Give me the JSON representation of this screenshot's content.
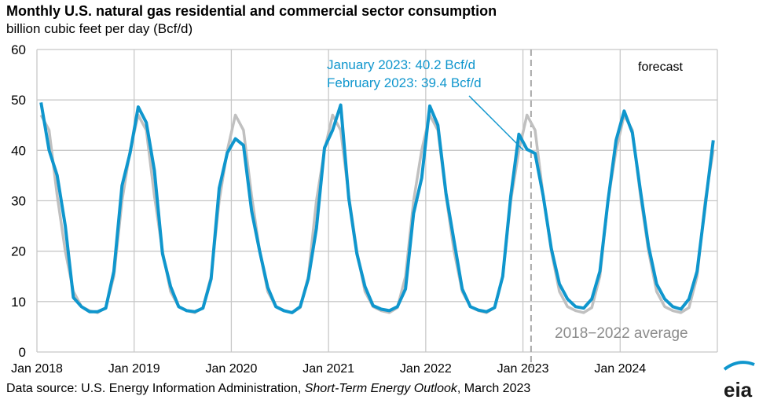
{
  "chart_data": {
    "type": "line",
    "title": "Monthly U.S. natural gas residential and commercial sector consumption",
    "subtitle": "billion cubic feet per day (Bcf/d)",
    "ylabel": "",
    "xlabel": "",
    "ylim": [
      0,
      60
    ],
    "yticks": [
      "0",
      "10",
      "20",
      "30",
      "40",
      "50",
      "60"
    ],
    "xstart": "Jan 2018",
    "xend": "Dec 2024",
    "xticks": [
      "Jan 2018",
      "Jan 2019",
      "Jan 2020",
      "Jan 2021",
      "Jan 2022",
      "Jan 2023",
      "Jan 2024"
    ],
    "grid": true,
    "forecast_start": "Feb 2023",
    "forecast_label": "forecast",
    "series": [
      {
        "name": "2018−2022 average",
        "color": "#c0c0c0",
        "values": [
          47,
          44,
          31,
          20,
          12,
          9,
          8.2,
          7.8,
          8.8,
          15,
          30,
          40,
          47,
          44,
          31,
          20,
          12,
          9,
          8.2,
          7.8,
          8.8,
          15,
          30,
          40,
          47,
          44,
          31,
          20,
          12,
          9,
          8.2,
          7.8,
          8.8,
          15,
          30,
          40,
          47,
          44,
          31,
          20,
          12,
          9,
          8.2,
          7.8,
          8.8,
          15,
          30,
          40,
          47,
          44,
          31,
          20,
          12,
          9,
          8.2,
          7.8,
          8.8,
          15,
          30,
          40,
          47,
          44,
          31,
          20,
          12,
          9,
          8.2,
          7.8,
          8.8,
          15,
          30,
          40,
          47,
          44,
          31,
          20,
          12,
          9,
          8.2,
          7.8,
          8.8,
          15,
          30,
          40
        ]
      },
      {
        "name": "",
        "color": "#0f96cd",
        "values": [
          49.5,
          40,
          35,
          25,
          10.8,
          9,
          8,
          8,
          8.7,
          16,
          33,
          39.5,
          48.6,
          45.5,
          36,
          19.5,
          13,
          9,
          8.2,
          8,
          8.7,
          14.5,
          32.5,
          39.5,
          42.3,
          41,
          28,
          20,
          12.8,
          9,
          8.2,
          7.8,
          9,
          14.5,
          24.5,
          40.5,
          44,
          49,
          30.5,
          19.5,
          13,
          9.2,
          8.5,
          8.2,
          9,
          12.5,
          27.5,
          34.5,
          48.8,
          45,
          31.5,
          22,
          12.5,
          9,
          8.3,
          8,
          8.8,
          15,
          31,
          43.2,
          40.2,
          39.4,
          31,
          20.5,
          13.5,
          10.5,
          9,
          8.7,
          10.5,
          16,
          30,
          42,
          47.8,
          43.5,
          32,
          21,
          13.5,
          10.5,
          9,
          8.5,
          10.5,
          16,
          29,
          42
        ]
      }
    ],
    "annotations": [
      "January 2023: 40.2 Bcf/d",
      "February 2023: 39.4 Bcf/d"
    ],
    "source_prefix": "Data source: U.S. Energy Information Administration, ",
    "source_italic": "Short-Term Energy Outlook",
    "source_suffix": ", March 2023",
    "logo": "eia"
  }
}
